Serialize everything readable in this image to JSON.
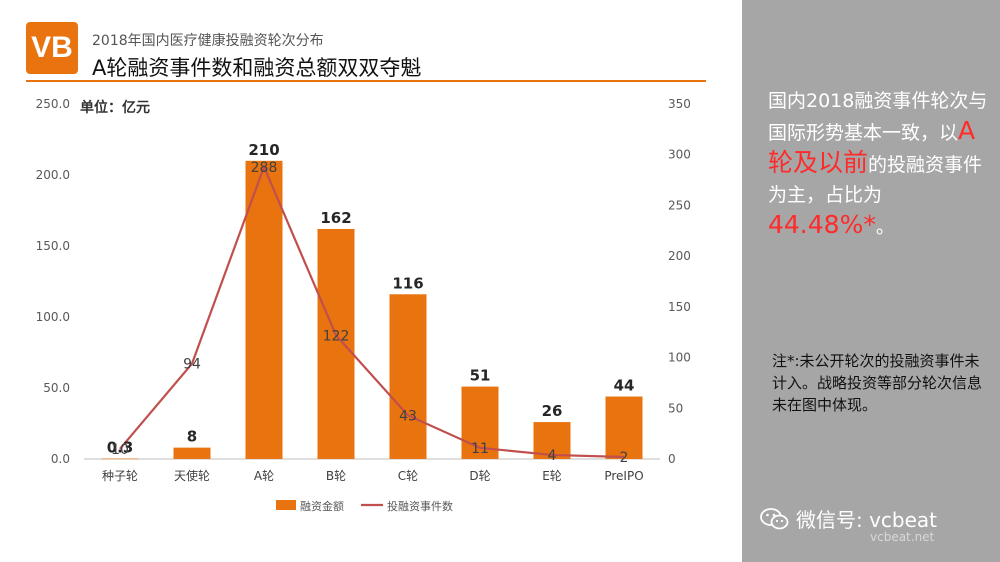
{
  "header": {
    "logo": "VB",
    "subtitle": "2018年国内医疗健康投融资轮次分布",
    "title": "A轮融资事件数和融资总额双双夺魁"
  },
  "unit_label": "单位：亿元",
  "colors": {
    "bar": "#e8730f",
    "line": "#c0504d",
    "accent": "#e8730f",
    "sidebar": "#a6a6a6",
    "highlight": "#ff2a2a"
  },
  "chart_data": {
    "type": "bar",
    "categories": [
      "种子轮",
      "天使轮",
      "A轮",
      "B轮",
      "C轮",
      "D轮",
      "E轮",
      "PreIPO"
    ],
    "series": [
      {
        "name": "融资金额",
        "type": "bar",
        "axis": "left",
        "values": [
          0.3,
          8,
          210,
          162,
          116,
          51,
          26,
          44
        ],
        "labels": [
          "0.3",
          "8",
          "210",
          "162",
          "116",
          "51",
          "26",
          "44"
        ]
      },
      {
        "name": "投融资事件数",
        "type": "line",
        "axis": "right",
        "values": [
          10,
          94,
          288,
          122,
          43,
          11,
          4,
          2
        ],
        "labels": [
          "10",
          "94",
          "288",
          "122",
          "43",
          "11",
          "4",
          "2"
        ]
      }
    ],
    "y_left": {
      "ylim": [
        0,
        250
      ],
      "ticks": [
        "0.0",
        "50.0",
        "100.0",
        "150.0",
        "200.0",
        "250.0"
      ]
    },
    "y_right": {
      "ylim": [
        0,
        350
      ],
      "ticks": [
        "0",
        "50",
        "100",
        "150",
        "200",
        "250",
        "300",
        "350"
      ]
    },
    "legend_position": "bottom",
    "grid": false
  },
  "sidebar": {
    "text_1": "国内2018融资事件轮次与国际形势基本一致，以",
    "highlight_1": "A轮及以前",
    "text_2": "的投融资事件为主，占比为",
    "highlight_2": "44.48%*",
    "text_3": "。",
    "note": "注*:未公开轮次的投融资事件未计入。战略投资等部分轮次信息未在图中体现。",
    "wechat": "微信号: vcbeat",
    "watermark": "vcbeat.net"
  }
}
